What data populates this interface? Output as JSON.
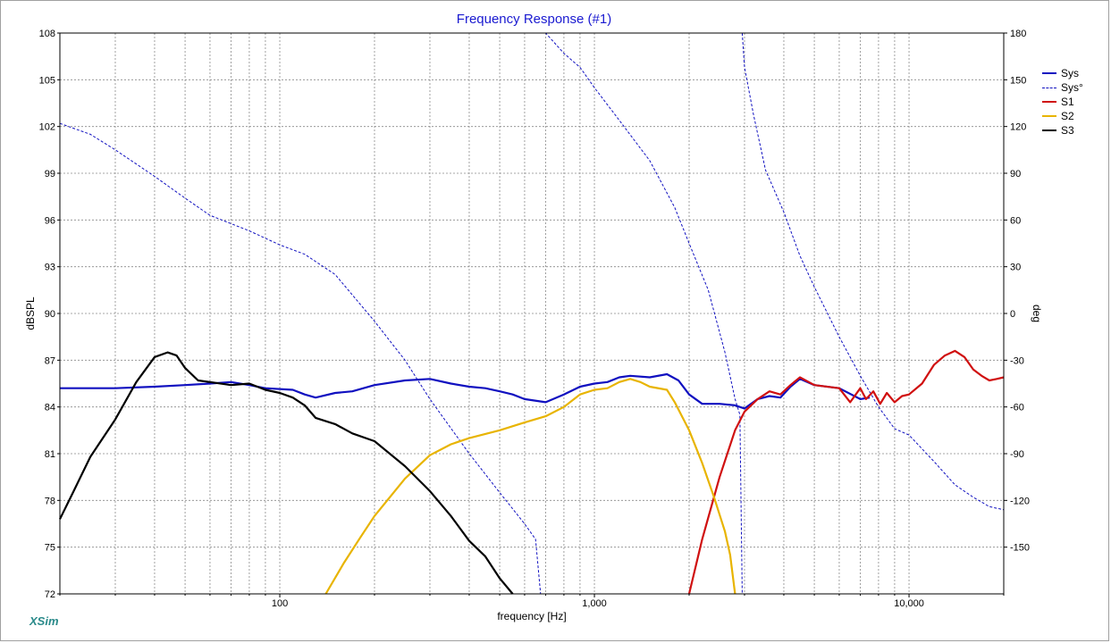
{
  "window": {
    "brand": "XSim"
  },
  "chart_data": {
    "type": "line",
    "title": "Frequency Response (#1)",
    "xlabel": "frequency [Hz]",
    "ylabel": "dBSPL",
    "y2label": "deg",
    "x_scale": "log",
    "xlim": [
      20,
      20000
    ],
    "ylim": [
      72,
      108
    ],
    "y2lim": [
      -180,
      180
    ],
    "x_ticks": [
      {
        "value": 100,
        "label": "100"
      },
      {
        "value": 1000,
        "label": "1,000"
      },
      {
        "value": 10000,
        "label": "10,000"
      }
    ],
    "y_ticks": [
      72,
      75,
      78,
      81,
      84,
      87,
      90,
      93,
      96,
      99,
      102,
      105,
      108
    ],
    "y2_ticks": [
      -150,
      -120,
      -90,
      -60,
      -30,
      0,
      30,
      60,
      90,
      120,
      150,
      180
    ],
    "y2_tick_labels": [
      "-150",
      "-120",
      "-90",
      "-60",
      "-30",
      "0",
      "30",
      "60",
      "90",
      "120",
      "150",
      "180"
    ],
    "grid": true,
    "legend_position": "right",
    "series": [
      {
        "name": "Sys",
        "axis": "left",
        "color": "#1010c0",
        "style": "solid",
        "width": 2.2,
        "points": [
          [
            20,
            85.2
          ],
          [
            30,
            85.2
          ],
          [
            40,
            85.3
          ],
          [
            50,
            85.4
          ],
          [
            60,
            85.5
          ],
          [
            70,
            85.6
          ],
          [
            80,
            85.4
          ],
          [
            90,
            85.2
          ],
          [
            110,
            85.1
          ],
          [
            120,
            84.8
          ],
          [
            130,
            84.6
          ],
          [
            150,
            84.9
          ],
          [
            170,
            85.0
          ],
          [
            200,
            85.4
          ],
          [
            250,
            85.7
          ],
          [
            300,
            85.8
          ],
          [
            350,
            85.5
          ],
          [
            400,
            85.3
          ],
          [
            450,
            85.2
          ],
          [
            500,
            85.0
          ],
          [
            550,
            84.8
          ],
          [
            600,
            84.5
          ],
          [
            700,
            84.3
          ],
          [
            800,
            84.8
          ],
          [
            900,
            85.3
          ],
          [
            1000,
            85.5
          ],
          [
            1100,
            85.6
          ],
          [
            1200,
            85.9
          ],
          [
            1300,
            86.0
          ],
          [
            1500,
            85.9
          ],
          [
            1700,
            86.1
          ],
          [
            1850,
            85.7
          ],
          [
            2000,
            84.8
          ],
          [
            2200,
            84.2
          ],
          [
            2500,
            84.2
          ],
          [
            2800,
            84.1
          ],
          [
            3000,
            83.9
          ],
          [
            3300,
            84.5
          ],
          [
            3600,
            84.7
          ],
          [
            3900,
            84.6
          ],
          [
            4200,
            85.3
          ],
          [
            4500,
            85.8
          ],
          [
            5000,
            85.4
          ],
          [
            6000,
            85.2
          ],
          [
            7000,
            84.5
          ],
          [
            7500,
            84.6
          ]
        ]
      },
      {
        "name": "Sys°",
        "axis": "right",
        "color": "#1010c0",
        "style": "dashed",
        "width": 1,
        "points": [
          [
            20,
            122
          ],
          [
            25,
            115
          ],
          [
            30,
            105
          ],
          [
            40,
            88
          ],
          [
            50,
            74
          ],
          [
            60,
            63
          ],
          [
            80,
            53
          ],
          [
            100,
            44
          ],
          [
            120,
            38
          ],
          [
            150,
            25
          ],
          [
            200,
            -5
          ],
          [
            250,
            -30
          ],
          [
            300,
            -55
          ],
          [
            400,
            -90
          ],
          [
            500,
            -115
          ],
          [
            600,
            -135
          ],
          [
            650,
            -145
          ],
          [
            700,
            180
          ],
          [
            800,
            167
          ],
          [
            900,
            158
          ],
          [
            1000,
            145
          ],
          [
            1200,
            124
          ],
          [
            1500,
            98
          ],
          [
            1800,
            68
          ],
          [
            2000,
            45
          ],
          [
            2300,
            15
          ],
          [
            2600,
            -25
          ],
          [
            2800,
            -55
          ],
          [
            2900,
            -65
          ],
          [
            3000,
            158
          ],
          [
            3200,
            128
          ],
          [
            3500,
            92
          ],
          [
            4000,
            65
          ],
          [
            4500,
            37
          ],
          [
            5000,
            17
          ],
          [
            6000,
            -15
          ],
          [
            7000,
            -40
          ],
          [
            8000,
            -60
          ],
          [
            9000,
            -74
          ],
          [
            10000,
            -78
          ],
          [
            12000,
            -95
          ],
          [
            14000,
            -110
          ],
          [
            16000,
            -118
          ],
          [
            18000,
            -124
          ],
          [
            20000,
            -126
          ]
        ]
      },
      {
        "name": "S1",
        "axis": "left",
        "color": "#d01010",
        "style": "solid",
        "width": 2.2,
        "points": [
          [
            2000,
            72
          ],
          [
            2200,
            75.5
          ],
          [
            2500,
            79.5
          ],
          [
            2800,
            82.5
          ],
          [
            3000,
            83.7
          ],
          [
            3300,
            84.5
          ],
          [
            3600,
            85.0
          ],
          [
            3900,
            84.8
          ],
          [
            4200,
            85.4
          ],
          [
            4500,
            85.9
          ],
          [
            5000,
            85.4
          ],
          [
            6000,
            85.2
          ],
          [
            6500,
            84.3
          ],
          [
            7000,
            85.2
          ],
          [
            7300,
            84.5
          ],
          [
            7700,
            85.0
          ],
          [
            8100,
            84.2
          ],
          [
            8500,
            84.9
          ],
          [
            9000,
            84.3
          ],
          [
            9500,
            84.7
          ],
          [
            10000,
            84.8
          ],
          [
            11000,
            85.5
          ],
          [
            12000,
            86.7
          ],
          [
            13000,
            87.3
          ],
          [
            14000,
            87.6
          ],
          [
            15000,
            87.2
          ],
          [
            16000,
            86.4
          ],
          [
            17000,
            86.0
          ],
          [
            18000,
            85.7
          ],
          [
            19000,
            85.8
          ],
          [
            20000,
            85.9
          ]
        ]
      },
      {
        "name": "S2",
        "axis": "left",
        "color": "#e8b400",
        "style": "solid",
        "width": 2.2,
        "points": [
          [
            140,
            72
          ],
          [
            160,
            74
          ],
          [
            180,
            75.6
          ],
          [
            200,
            77
          ],
          [
            250,
            79.4
          ],
          [
            300,
            80.9
          ],
          [
            350,
            81.6
          ],
          [
            400,
            82.0
          ],
          [
            500,
            82.5
          ],
          [
            600,
            83.0
          ],
          [
            700,
            83.4
          ],
          [
            800,
            84.0
          ],
          [
            900,
            84.8
          ],
          [
            1000,
            85.1
          ],
          [
            1100,
            85.2
          ],
          [
            1200,
            85.6
          ],
          [
            1300,
            85.8
          ],
          [
            1400,
            85.6
          ],
          [
            1500,
            85.3
          ],
          [
            1700,
            85.1
          ],
          [
            1800,
            84.3
          ],
          [
            2000,
            82.5
          ],
          [
            2200,
            80.4
          ],
          [
            2400,
            78.2
          ],
          [
            2600,
            76.0
          ],
          [
            2700,
            74.5
          ],
          [
            2800,
            72
          ]
        ]
      },
      {
        "name": "S3",
        "axis": "left",
        "color": "#000000",
        "style": "solid",
        "width": 2.2,
        "points": [
          [
            20,
            76.8
          ],
          [
            22,
            78.5
          ],
          [
            25,
            80.8
          ],
          [
            30,
            83.2
          ],
          [
            35,
            85.6
          ],
          [
            40,
            87.2
          ],
          [
            44,
            87.5
          ],
          [
            47,
            87.3
          ],
          [
            50,
            86.5
          ],
          [
            55,
            85.7
          ],
          [
            60,
            85.6
          ],
          [
            70,
            85.4
          ],
          [
            80,
            85.5
          ],
          [
            90,
            85.1
          ],
          [
            100,
            84.9
          ],
          [
            110,
            84.6
          ],
          [
            120,
            84.1
          ],
          [
            130,
            83.3
          ],
          [
            150,
            82.9
          ],
          [
            170,
            82.3
          ],
          [
            200,
            81.8
          ],
          [
            250,
            80.2
          ],
          [
            300,
            78.6
          ],
          [
            350,
            77.0
          ],
          [
            400,
            75.4
          ],
          [
            450,
            74.4
          ],
          [
            500,
            73.0
          ],
          [
            550,
            72
          ]
        ]
      }
    ]
  }
}
